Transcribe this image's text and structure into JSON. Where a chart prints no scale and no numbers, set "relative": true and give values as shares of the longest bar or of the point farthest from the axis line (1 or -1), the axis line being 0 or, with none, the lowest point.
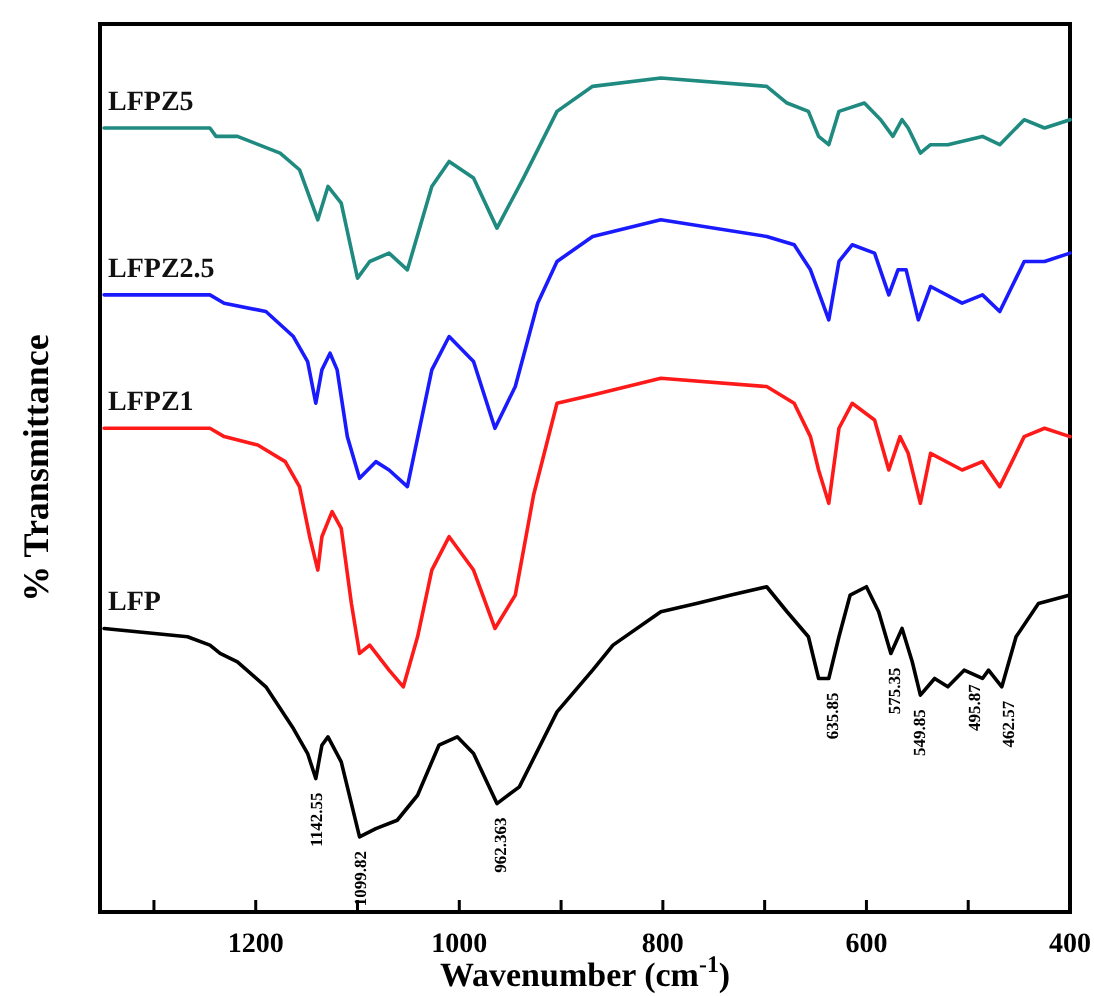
{
  "chart_data": {
    "type": "line",
    "relative": true,
    "xlabel": "Wavenumber (cm$^{-1}$)",
    "ylabel": "% Transmittance",
    "xlim": [
      1353,
      400
    ],
    "xticks": [
      {
        "value": 1300,
        "label": null
      },
      1200,
      {
        "value": 1100,
        "label": null
      },
      1000,
      {
        "value": 900,
        "label": null
      },
      800,
      {
        "value": 700,
        "label": null
      },
      600,
      {
        "value": 500,
        "label": null
      },
      400
    ],
    "grid": false,
    "legend": false,
    "marker": "none",
    "line_style": "solid",
    "series": [
      {
        "name": "LFPZ5",
        "color": "#1f8a7f",
        "x": [
          1349,
          1245,
          1239,
          1218,
          1176,
          1157,
          1139,
          1129,
          1116,
          1100,
          1088,
          1069,
          1051,
          1027,
          1010,
          986,
          963,
          937,
          904,
          869,
          802,
          698,
          678,
          657,
          647,
          637,
          627,
          602,
          586,
          574,
          565,
          559,
          547,
          537,
          520,
          486,
          469,
          445,
          425,
          400
        ],
        "values": [
          0.94,
          0.94,
          0.93,
          0.93,
          0.91,
          0.89,
          0.83,
          0.87,
          0.85,
          0.76,
          0.78,
          0.79,
          0.77,
          0.87,
          0.9,
          0.88,
          0.82,
          0.88,
          0.96,
          0.99,
          1.0,
          0.99,
          0.97,
          0.96,
          0.93,
          0.92,
          0.96,
          0.97,
          0.95,
          0.93,
          0.95,
          0.94,
          0.91,
          0.92,
          0.92,
          0.93,
          0.92,
          0.95,
          0.94,
          0.95
        ]
      },
      {
        "name": "LFPZ2.5",
        "color": "#1a1aff",
        "x": [
          1349,
          1245,
          1231,
          1190,
          1163,
          1149,
          1141,
          1135,
          1127,
          1120,
          1110,
          1098,
          1082,
          1069,
          1051,
          1027,
          1010,
          986,
          965,
          945,
          923,
          904,
          869,
          802,
          698,
          671,
          655,
          643,
          637,
          627,
          614,
          592,
          578,
          569,
          561,
          549,
          537,
          506,
          486,
          469,
          445,
          425,
          400
        ],
        "values": [
          0.74,
          0.74,
          0.73,
          0.72,
          0.69,
          0.66,
          0.61,
          0.65,
          0.67,
          0.65,
          0.57,
          0.52,
          0.54,
          0.53,
          0.51,
          0.65,
          0.69,
          0.66,
          0.58,
          0.63,
          0.73,
          0.78,
          0.81,
          0.83,
          0.81,
          0.8,
          0.77,
          0.73,
          0.71,
          0.78,
          0.8,
          0.79,
          0.74,
          0.77,
          0.77,
          0.71,
          0.75,
          0.73,
          0.74,
          0.72,
          0.78,
          0.78,
          0.79
        ]
      },
      {
        "name": "LFPZ1",
        "color": "#ff1a1a",
        "x": [
          1349,
          1245,
          1231,
          1198,
          1171,
          1157,
          1147,
          1139,
          1135,
          1125,
          1116,
          1106,
          1098,
          1088,
          1069,
          1055,
          1041,
          1027,
          1010,
          986,
          965,
          945,
          927,
          904,
          869,
          802,
          698,
          671,
          655,
          647,
          637,
          627,
          614,
          592,
          578,
          567,
          559,
          547,
          537,
          506,
          486,
          469,
          445,
          425,
          400
        ],
        "values": [
          0.58,
          0.58,
          0.57,
          0.56,
          0.54,
          0.51,
          0.45,
          0.41,
          0.45,
          0.48,
          0.46,
          0.37,
          0.31,
          0.32,
          0.29,
          0.27,
          0.33,
          0.41,
          0.45,
          0.41,
          0.34,
          0.38,
          0.5,
          0.61,
          0.62,
          0.64,
          0.63,
          0.61,
          0.57,
          0.53,
          0.49,
          0.58,
          0.61,
          0.59,
          0.53,
          0.57,
          0.55,
          0.49,
          0.55,
          0.53,
          0.54,
          0.51,
          0.57,
          0.58,
          0.57
        ]
      },
      {
        "name": "LFP",
        "color": "#000000",
        "x": [
          1349,
          1267,
          1245,
          1235,
          1218,
          1190,
          1163,
          1149,
          1141,
          1135,
          1129,
          1116,
          1098,
          1082,
          1061,
          1041,
          1020,
          1002,
          986,
          963,
          941,
          904,
          869,
          849,
          802,
          767,
          733,
          698,
          678,
          657,
          647,
          637,
          627,
          616,
          600,
          588,
          576,
          565,
          555,
          547,
          533,
          520,
          504,
          486,
          480,
          467,
          453,
          431,
          400
        ],
        "values": [
          0.34,
          0.33,
          0.32,
          0.31,
          0.3,
          0.27,
          0.22,
          0.19,
          0.16,
          0.2,
          0.21,
          0.18,
          0.09,
          0.1,
          0.11,
          0.14,
          0.2,
          0.21,
          0.19,
          0.13,
          0.15,
          0.24,
          0.29,
          0.32,
          0.36,
          0.37,
          0.38,
          0.39,
          0.36,
          0.33,
          0.28,
          0.28,
          0.33,
          0.38,
          0.39,
          0.36,
          0.31,
          0.34,
          0.3,
          0.26,
          0.28,
          0.27,
          0.29,
          0.28,
          0.29,
          0.27,
          0.33,
          0.37,
          0.38
        ]
      }
    ],
    "annotations": [
      {
        "text": "1142.55",
        "x": 1142.55,
        "y": 0.16
      },
      {
        "text": "1099.82",
        "x": 1099.82,
        "y": 0.09
      },
      {
        "text": "962.363",
        "x": 962.363,
        "y": 0.13
      },
      {
        "text": "635.85",
        "x": 635.85,
        "y": 0.28
      },
      {
        "text": "575.35",
        "x": 575.35,
        "y": 0.31
      },
      {
        "text": "549.85",
        "x": 549.85,
        "y": 0.26
      },
      {
        "text": "495.87",
        "x": 495.87,
        "y": 0.29
      },
      {
        "text": "462.57",
        "x": 462.57,
        "y": 0.27
      }
    ]
  }
}
